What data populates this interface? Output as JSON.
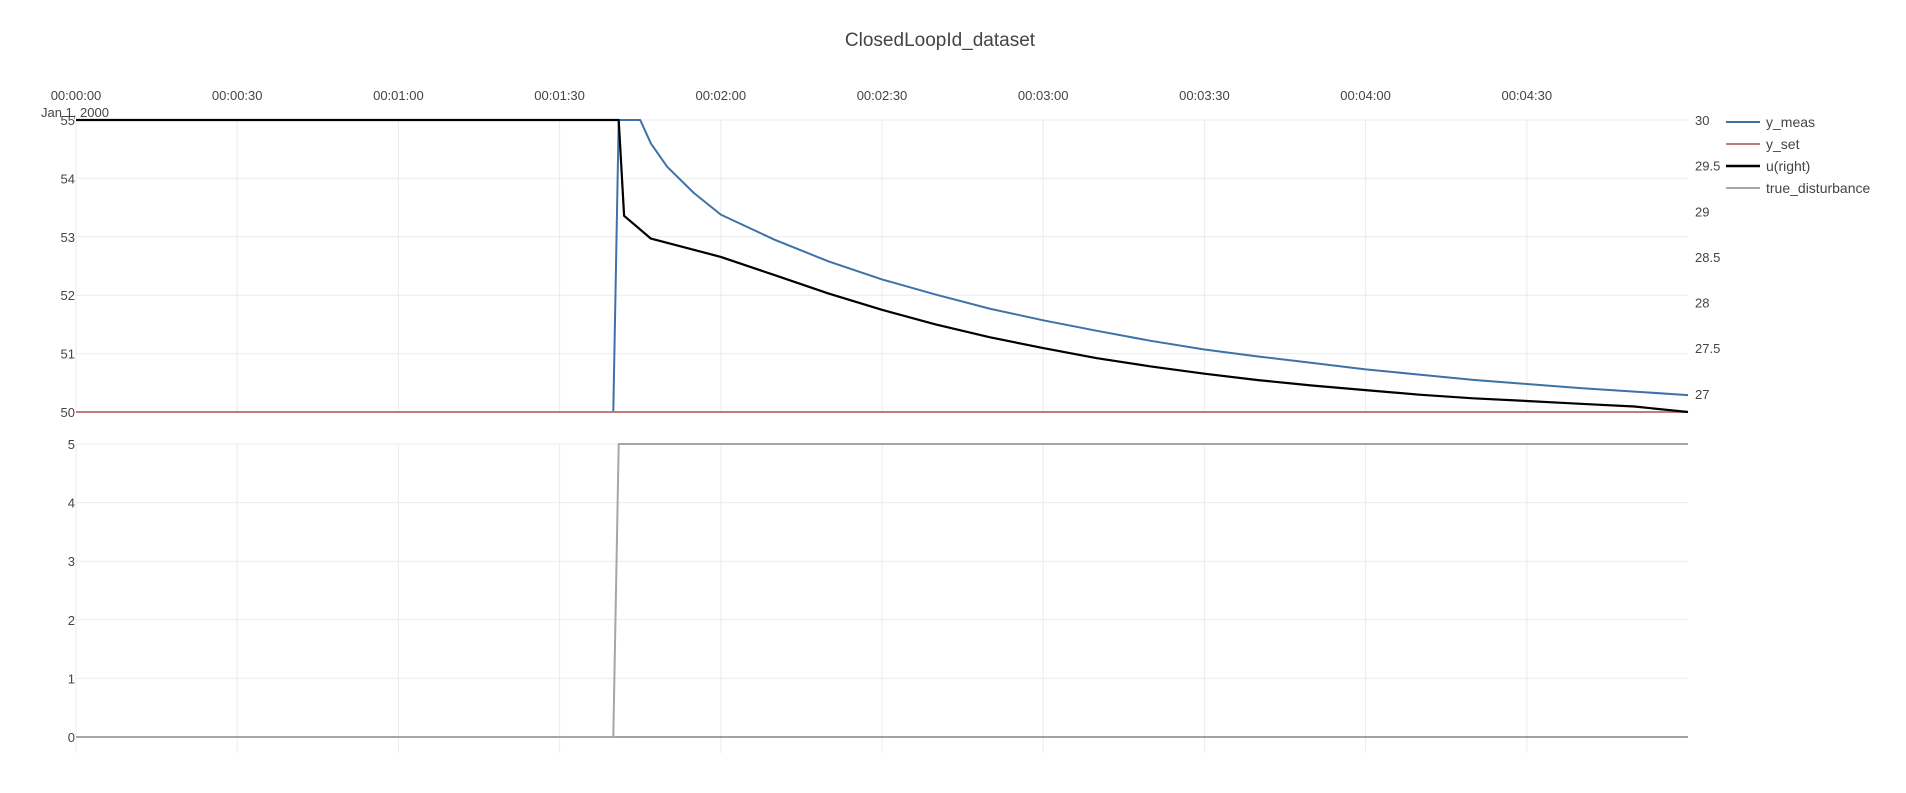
{
  "chart_data": {
    "type": "line",
    "title": "ClosedLoopId_dataset",
    "x_unit": "seconds",
    "x_range": [
      0,
      300
    ],
    "x_tick_values": [
      0,
      30,
      60,
      90,
      120,
      150,
      180,
      210,
      240,
      270
    ],
    "x_tick_labels": [
      "00:00:00",
      "00:00:30",
      "00:01:00",
      "00:01:30",
      "00:02:00",
      "00:02:30",
      "00:03:00",
      "00:03:30",
      "00:04:00",
      "00:04:30"
    ],
    "x_date_label": "Jan 1, 2000",
    "panels": [
      {
        "id": "top",
        "left_axis": {
          "range": [
            50,
            55
          ],
          "ticks": [
            50,
            51,
            52,
            53,
            54,
            55
          ],
          "tick_labels": [
            "50",
            "51",
            "52",
            "53",
            "54",
            "55"
          ]
        },
        "right_axis": {
          "range": [
            26.8,
            30
          ],
          "ticks": [
            27,
            27.5,
            28,
            28.5,
            29,
            29.5,
            30
          ],
          "tick_labels": [
            "27",
            "27.5",
            "28",
            "28.5",
            "29",
            "29.5",
            "30"
          ]
        }
      },
      {
        "id": "bottom",
        "left_axis": {
          "range": [
            0,
            5
          ],
          "ticks": [
            0,
            1,
            2,
            3,
            4,
            5
          ],
          "tick_labels": [
            "0",
            "1",
            "2",
            "3",
            "4",
            "5"
          ]
        }
      }
    ],
    "series": [
      {
        "name": "y_meas",
        "color": "#3d72a8",
        "panel": "top",
        "axis": "left",
        "x": [
          0,
          100,
          101,
          105,
          107,
          110,
          115,
          120,
          130,
          140,
          150,
          160,
          170,
          180,
          190,
          200,
          210,
          220,
          230,
          240,
          250,
          260,
          270,
          280,
          290,
          300
        ],
        "y": [
          50,
          50,
          55,
          55,
          54.6,
          54.2,
          53.75,
          53.38,
          52.95,
          52.58,
          52.27,
          52.01,
          51.77,
          51.57,
          51.39,
          51.22,
          51.07,
          50.95,
          50.84,
          50.73,
          50.64,
          50.55,
          50.48,
          50.41,
          50.35,
          50.29
        ]
      },
      {
        "name": "y_set",
        "color": "#c07b7b",
        "panel": "top",
        "axis": "left",
        "x": [
          0,
          300
        ],
        "y": [
          50,
          50
        ]
      },
      {
        "name": "u(right)",
        "color": "#000000",
        "panel": "top",
        "axis": "right",
        "x": [
          0,
          101,
          102,
          107,
          120,
          130,
          140,
          150,
          160,
          170,
          180,
          190,
          200,
          210,
          220,
          230,
          240,
          250,
          260,
          270,
          280,
          290,
          300
        ],
        "y": [
          30,
          30,
          28.95,
          28.7,
          28.5,
          28.3,
          28.1,
          27.92,
          27.76,
          27.62,
          27.5,
          27.39,
          27.3,
          27.22,
          27.15,
          27.09,
          27.04,
          26.99,
          26.95,
          26.92,
          26.89,
          26.86,
          26.8
        ]
      },
      {
        "name": "true_disturbance",
        "color": "#a6a6a6",
        "panel": "bottom",
        "axis": "left",
        "x": [
          0,
          100,
          101,
          300
        ],
        "y": [
          0,
          0,
          5,
          5
        ]
      }
    ],
    "legend": {
      "position": "top-right",
      "entries": [
        "y_meas",
        "y_set",
        "u(right)",
        "true_disturbance"
      ]
    },
    "grid": true
  }
}
